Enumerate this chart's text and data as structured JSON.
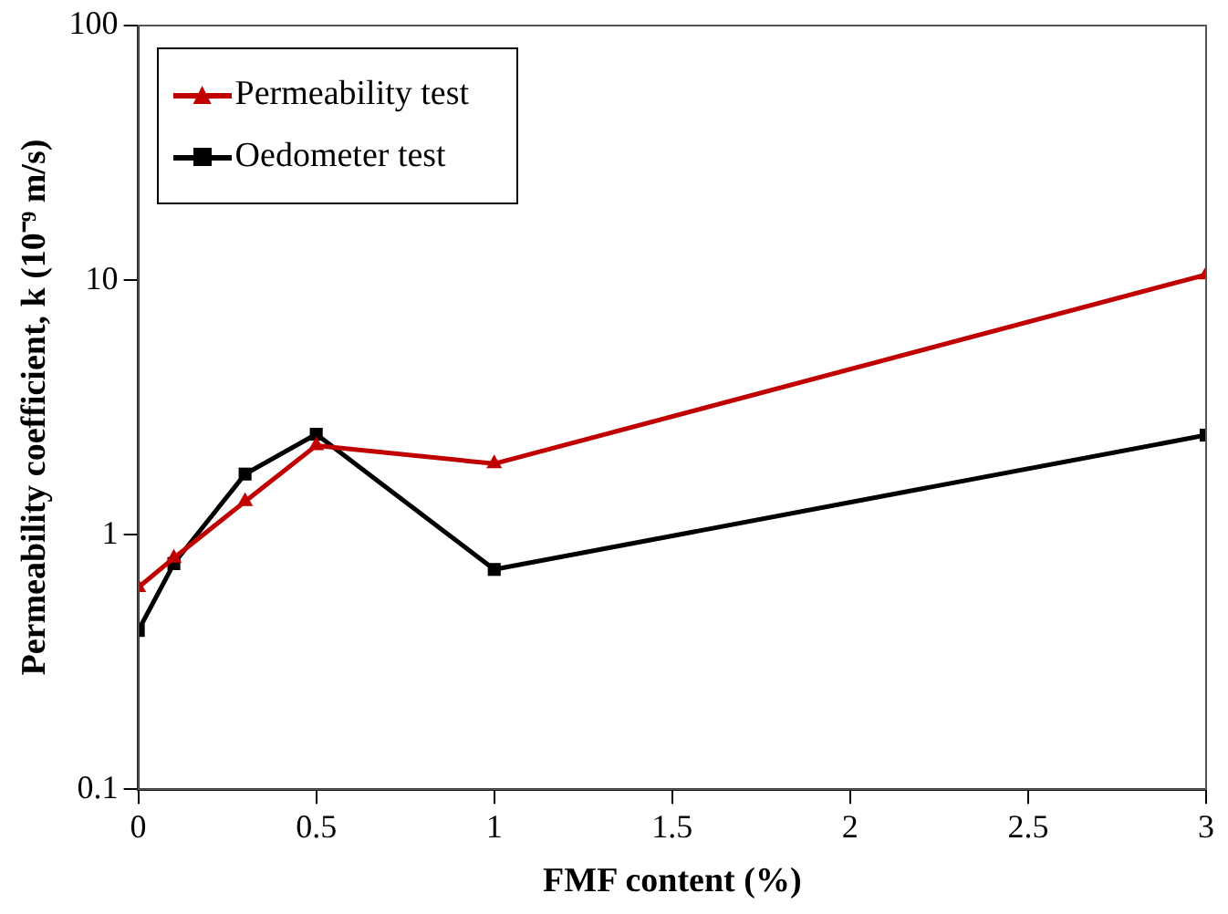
{
  "chart_data": {
    "type": "line",
    "xlabel": "FMF content (%)",
    "ylabel": "Permeability coefficient, k (10⁻⁹ m/s)",
    "x": [
      0,
      0.1,
      0.3,
      0.5,
      1,
      3
    ],
    "series": [
      {
        "name": "Permeability test",
        "color": "#c00000",
        "marker": "triangle",
        "values": [
          0.62,
          0.81,
          1.35,
          2.24,
          1.9,
          10.5
        ]
      },
      {
        "name": "Oedometer test",
        "color": "#000000",
        "marker": "square",
        "values": [
          0.42,
          0.77,
          1.73,
          2.48,
          0.73,
          2.46
        ]
      }
    ],
    "xlim": [
      0,
      3
    ],
    "xticks": [
      0,
      0.5,
      1,
      1.5,
      2,
      2.5,
      3
    ],
    "ylim": [
      0.1,
      100
    ],
    "yticks": [
      0.1,
      1,
      10,
      100
    ],
    "log": "y",
    "grid": false,
    "legend": "top left"
  }
}
